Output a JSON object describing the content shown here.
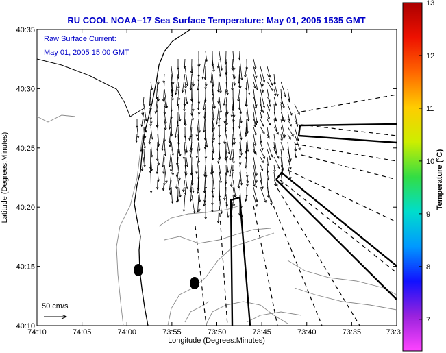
{
  "chart_data": {
    "type": "vector-map",
    "title": "RU COOL  NOAA–17  Sea Surface Temperature:  May 01, 2005 1535 GMT",
    "annotation": [
      "Raw Surface Current:",
      "May 01, 2005 15:00 GMT"
    ],
    "xlabel": "Longitude (Degrees:Minutes)",
    "ylabel": "Latitude (Degrees:Minutes)",
    "x_ticks": [
      "74:10",
      "74:05",
      "74:00",
      "73:55",
      "73:50",
      "73:45",
      "73:40",
      "73:35",
      "73:3"
    ],
    "y_ticks": [
      "40:10",
      "40:15",
      "40:20",
      "40:25",
      "40:30",
      "40:35"
    ],
    "scale_label": "50 cm/s",
    "colorbar": {
      "label": "Temperature (°C)",
      "range": [
        6.4,
        13
      ],
      "ticks": [
        "7",
        "8",
        "9",
        "10",
        "11",
        "12",
        "13"
      ],
      "colors": [
        "#ff44ff",
        "#9922dd",
        "#1111ff",
        "#0099ff",
        "#00ddcc",
        "#33dd44",
        "#ccee00",
        "#ffcc00",
        "#ff6600",
        "#ee1100",
        "#aa0000"
      ]
    },
    "grid": false
  }
}
